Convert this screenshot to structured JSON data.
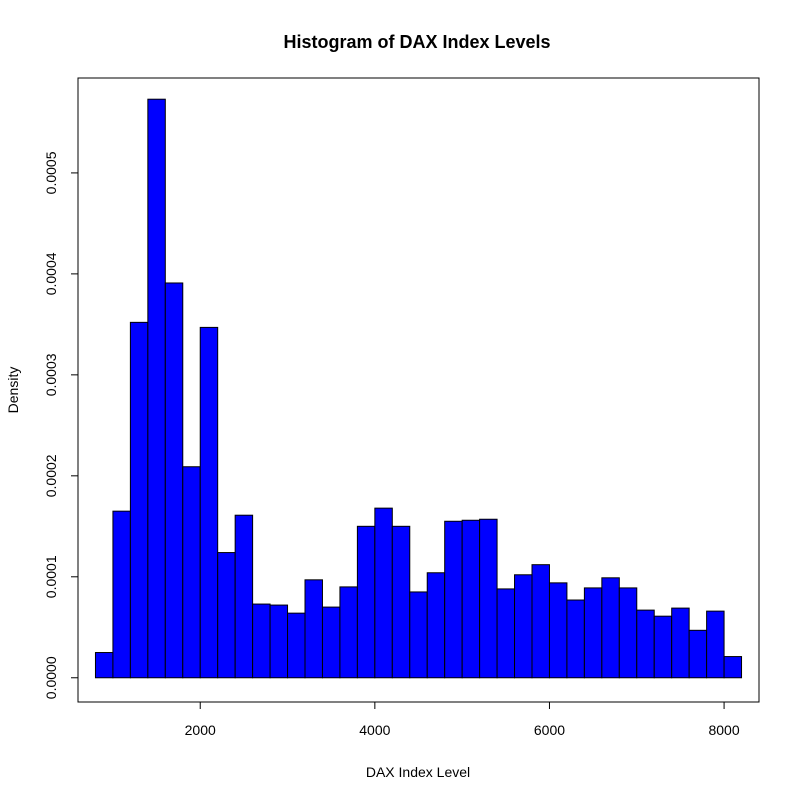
{
  "chart_data": {
    "type": "bar",
    "title": "Histogram of DAX Index Levels",
    "xlabel": "DAX Index Level",
    "ylabel": "Density",
    "xlim": [
      600,
      8400
    ],
    "ylim": [
      -2.4e-05,
      0.000594
    ],
    "x_ticks": [
      2000,
      4000,
      6000,
      8000
    ],
    "x_tick_labels": [
      "2000",
      "4000",
      "6000",
      "8000"
    ],
    "y_ticks": [
      0,
      0.0001,
      0.0002,
      0.0003,
      0.0004,
      0.0005
    ],
    "y_tick_labels": [
      "0.0000",
      "0.0001",
      "0.0002",
      "0.0003",
      "0.0004",
      "0.0005"
    ],
    "bin_width": 200,
    "bin_edges_start": 800,
    "values": [
      2.5e-05,
      0.000165,
      0.000352,
      0.000573,
      0.000391,
      0.000209,
      0.000347,
      0.000124,
      0.000161,
      7.3e-05,
      7.2e-05,
      6.4e-05,
      9.7e-05,
      7e-05,
      9e-05,
      0.00015,
      0.000168,
      0.00015,
      8.5e-05,
      0.000104,
      0.000155,
      0.000156,
      0.000157,
      8.8e-05,
      0.000102,
      0.000112,
      9.4e-05,
      7.7e-05,
      8.9e-05,
      9.9e-05,
      8.9e-05,
      6.7e-05,
      6.1e-05,
      6.9e-05,
      4.7e-05,
      6.6e-05,
      2.1e-05
    ],
    "grid": false,
    "legend": "none",
    "colors": {
      "bar_fill": "#0000ff",
      "bar_stroke": "#000000"
    }
  }
}
